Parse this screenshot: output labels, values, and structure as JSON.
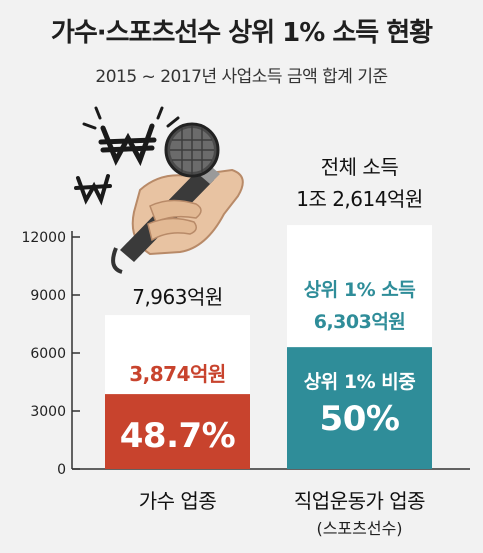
{
  "title": "가수·스포츠선수 상위 1% 소득 현황",
  "subtitle": "2015 ~ 2017년 사업소득 금액 합계 기준",
  "chart_data": {
    "type": "bar",
    "stacked": true,
    "ylim": [
      0,
      12000
    ],
    "yticks": [
      "12000",
      "9000",
      "6000",
      "3000",
      "0"
    ],
    "categories": [
      {
        "label": "가수 업종",
        "sublabel": ""
      },
      {
        "label": "직업운동가 업종",
        "sublabel": "(스포츠선수)"
      }
    ],
    "total_values": [
      7963,
      12614
    ],
    "top1_values": [
      3874,
      6303
    ],
    "top1_share": [
      "48.7%",
      "50%"
    ],
    "labels": {
      "singer_total": "7,963억원",
      "singer_top1": "3,874억원",
      "singer_share": "48.7%",
      "sports_total_caption": "전체 소득",
      "sports_total": "1조 2,614억원",
      "sports_top1_caption": "상위 1% 소득",
      "sports_top1": "6,303억원",
      "sports_share_caption": "상위 1% 비중",
      "sports_share": "50%"
    },
    "colors": {
      "singer_top1": "#c8432d",
      "sports_top1": "#2f8d99",
      "total_bg": "#ffffff"
    }
  }
}
